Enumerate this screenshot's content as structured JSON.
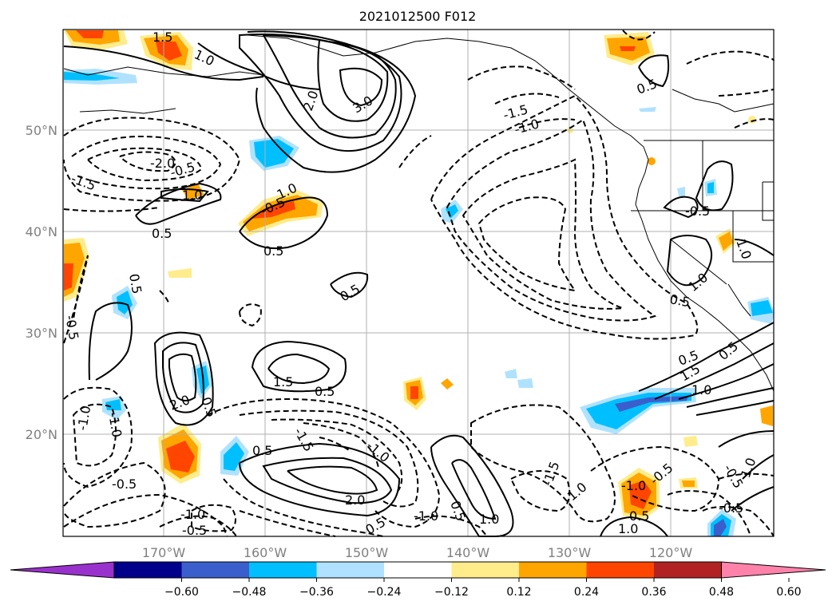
{
  "title": "2021012500 F012",
  "map": {
    "lat_labels": [
      "50°N",
      "40°N",
      "30°N",
      "20°N"
    ],
    "lon_labels": [
      "170°W",
      "160°W",
      "150°W",
      "140°W",
      "130°W",
      "120°W"
    ],
    "extent": {
      "lon": [
        -180,
        -110
      ],
      "lat": [
        10,
        60
      ]
    },
    "gridlines": true
  },
  "colorbar": {
    "ticks": [
      "−0.60",
      "−0.48",
      "−0.36",
      "−0.24",
      "−0.12",
      "0.12",
      "0.24",
      "0.36",
      "0.48",
      "0.60"
    ],
    "colors": [
      "#9932CC",
      "#00008B",
      "#3A5FCD",
      "#00BFFF",
      "#B0E2FF",
      "#FFFFFF",
      "#FFEC8B",
      "#FFA500",
      "#FF4500",
      "#B22222",
      "#FF82AB"
    ],
    "extend": "both"
  },
  "contour_labels": [
    {
      "text": "1.5"
    },
    {
      "text": "1.0"
    },
    {
      "text": "2.0"
    },
    {
      "text": "3.0"
    },
    {
      "text": "0.5"
    },
    {
      "text": "-1.5"
    },
    {
      "text": "-1.0"
    },
    {
      "text": "-2.0"
    },
    {
      "text": "-0.5"
    },
    {
      "text": "1.0"
    },
    {
      "text": "0.5"
    },
    {
      "text": "-0.5"
    },
    {
      "text": "1.0"
    },
    {
      "text": "0.5"
    },
    {
      "text": "0.5"
    },
    {
      "text": "0.5"
    },
    {
      "text": "-1.5"
    },
    {
      "text": "1.0"
    },
    {
      "text": "0.5"
    },
    {
      "text": "1.0"
    },
    {
      "text": "0.5"
    },
    {
      "text": "1.5"
    },
    {
      "text": "1.0"
    },
    {
      "text": "0.5"
    },
    {
      "text": "-0.5"
    },
    {
      "text": "1.5"
    },
    {
      "text": "2.0"
    },
    {
      "text": "-1.0"
    },
    {
      "text": "-0.5"
    },
    {
      "text": "-1.0"
    },
    {
      "text": "0.5"
    },
    {
      "text": "-0.5"
    },
    {
      "text": "-1.0"
    },
    {
      "text": "-1.5"
    },
    {
      "text": "2.0"
    },
    {
      "text": "0.5"
    },
    {
      "text": "-1.0"
    },
    {
      "text": "-1.0"
    },
    {
      "text": "0.5"
    },
    {
      "text": "1.0"
    },
    {
      "text": "-1.5"
    },
    {
      "text": "-1.0"
    },
    {
      "text": "-1.0"
    },
    {
      "text": "-0.5"
    },
    {
      "text": "0.5"
    },
    {
      "text": "1.0"
    },
    {
      "text": "-0.5"
    },
    {
      "text": "1.0"
    },
    {
      "text": "-0.5"
    },
    {
      "text": "0.5"
    },
    {
      "text": "-0.5"
    },
    {
      "text": "0.5"
    }
  ]
}
